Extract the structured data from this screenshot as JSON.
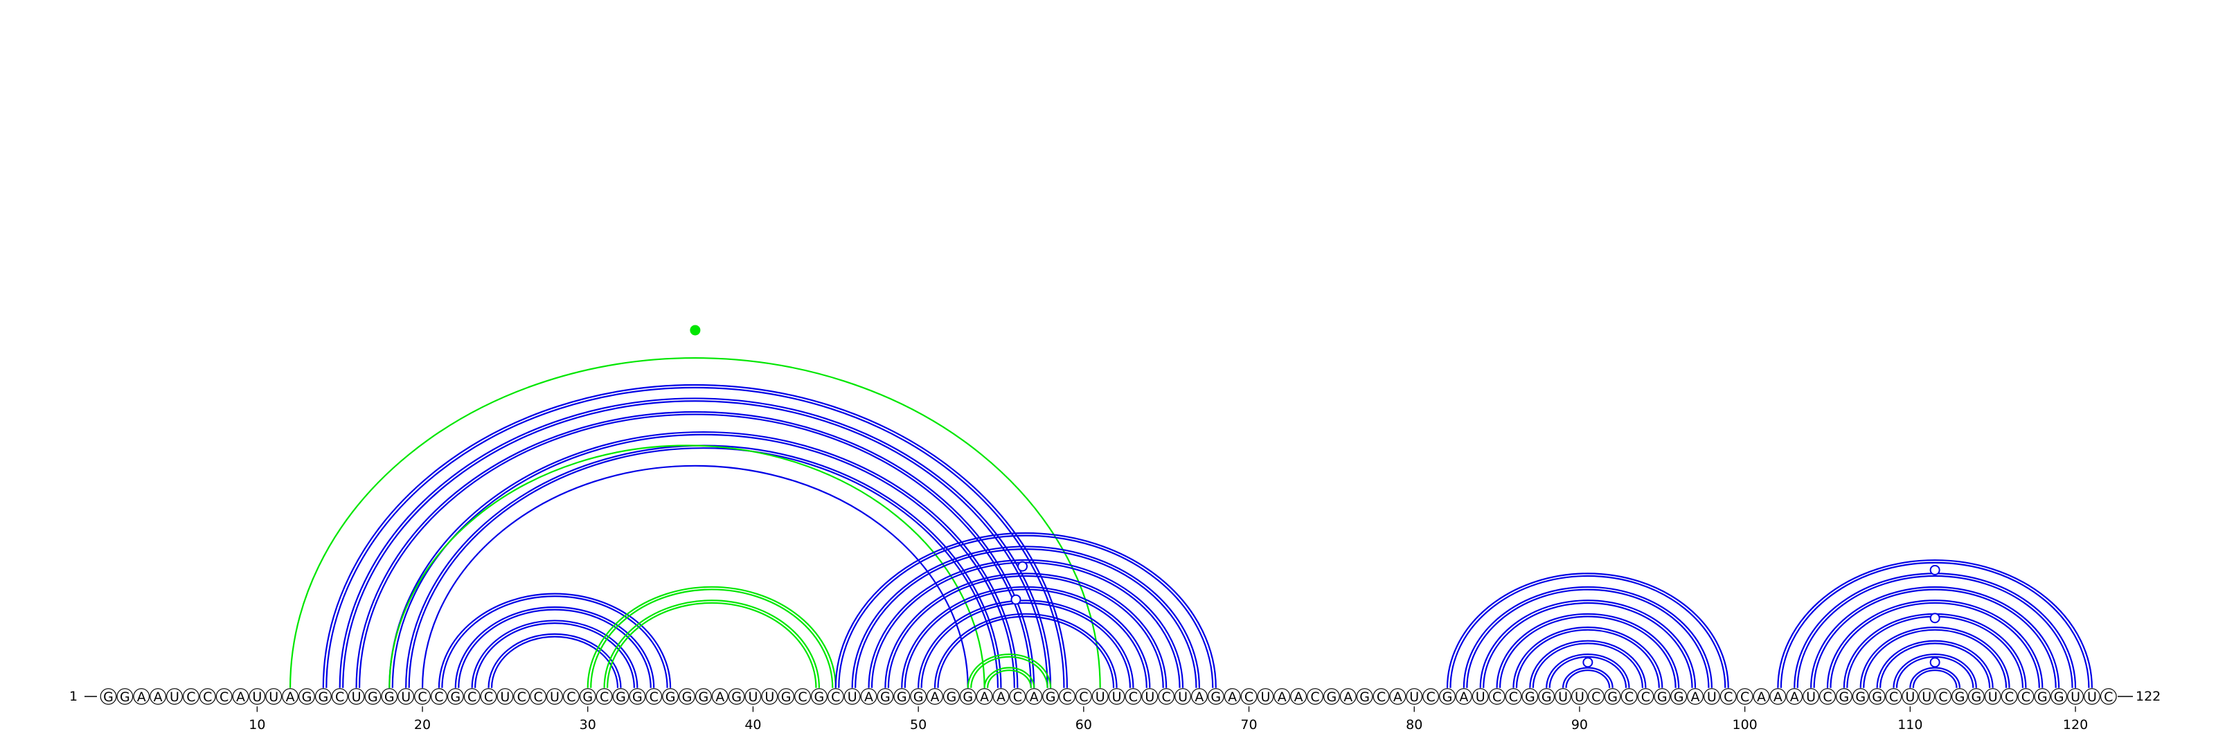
{
  "sequence": "GGAAUCCCAUUAGGCUGGUCCGCCUCCUCGCGGCGGGAGUUGCGCUAGGGAGGAACAGCCUUCUCUAGACUAACGAGCAUCGAUCCGGUUCGCCGGAUCCAAAUCGGGCUUCGGUCCGGUUC",
  "length": 122,
  "start_label": "1",
  "end_label": "122",
  "ticks": [
    "10",
    "20",
    "30",
    "40",
    "50",
    "60",
    "70",
    "80",
    "90",
    "100",
    "110",
    "120"
  ],
  "colors": {
    "blue": "#0000e6",
    "green": "#00e600"
  },
  "arc_groups": [
    {
      "color": "blue",
      "pairs": [
        [
          14,
          59
        ],
        [
          15,
          58
        ],
        [
          16,
          57
        ],
        [
          18,
          56
        ],
        [
          19,
          55
        ]
      ],
      "double": true
    },
    {
      "color": "blue",
      "pairs": [
        [
          20,
          53
        ]
      ],
      "double": false
    },
    {
      "color": "green",
      "pairs": [
        [
          12,
          61
        ]
      ],
      "double": false
    },
    {
      "color": "green",
      "pairs": [
        [
          18,
          54
        ]
      ],
      "double": false
    },
    {
      "color": "blue",
      "pairs": [
        [
          21,
          35
        ],
        [
          22,
          34
        ],
        [
          23,
          33
        ],
        [
          24,
          32
        ]
      ],
      "double": true
    },
    {
      "color": "green",
      "pairs": [
        [
          30,
          45
        ],
        [
          31,
          44
        ]
      ],
      "double": true
    },
    {
      "color": "blue",
      "pairs": [
        [
          45,
          68
        ],
        [
          46,
          67
        ],
        [
          47,
          66
        ],
        [
          48,
          65
        ],
        [
          49,
          64
        ],
        [
          50,
          63
        ],
        [
          51,
          62
        ]
      ],
      "double": true
    },
    {
      "color": "green",
      "pairs": [
        [
          53,
          58
        ],
        [
          54,
          57
        ]
      ],
      "double": true
    },
    {
      "color": "blue",
      "pairs": [
        [
          82,
          99
        ],
        [
          83,
          98
        ],
        [
          84,
          97
        ],
        [
          85,
          96
        ],
        [
          86,
          95
        ],
        [
          87,
          94
        ],
        [
          88,
          93
        ],
        [
          89,
          92
        ]
      ],
      "double": true
    },
    {
      "color": "blue",
      "pairs": [
        [
          102,
          121
        ],
        [
          103,
          120
        ],
        [
          104,
          119
        ],
        [
          105,
          118
        ],
        [
          106,
          117
        ],
        [
          107,
          116
        ],
        [
          108,
          115
        ],
        [
          109,
          114
        ],
        [
          110,
          113
        ]
      ],
      "double": true
    }
  ],
  "markers": [
    {
      "position": 36.5,
      "level": 0.485,
      "color": "green",
      "filled": true
    },
    {
      "position": 56.3,
      "level": 0.165,
      "color": "blue",
      "filled": false
    },
    {
      "position": 55.9,
      "level": 0.12,
      "color": "blue",
      "filled": false
    },
    {
      "position": 90.5,
      "level": 0.035,
      "color": "blue",
      "filled": false
    },
    {
      "position": 111.5,
      "level": 0.16,
      "color": "blue",
      "filled": false
    },
    {
      "position": 111.5,
      "level": 0.095,
      "color": "blue",
      "filled": false
    },
    {
      "position": 111.5,
      "level": 0.035,
      "color": "blue",
      "filled": false
    }
  ]
}
